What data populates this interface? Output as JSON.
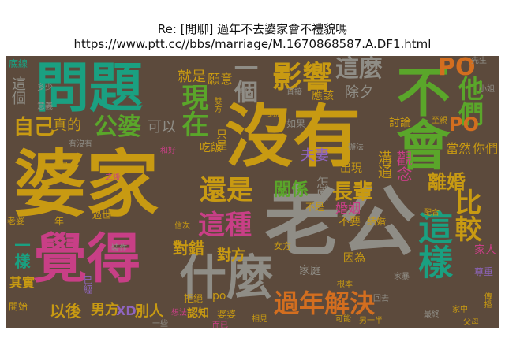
{
  "header": {
    "title": "Re: [閒聊] 過年不去婆家會不禮貌嗎",
    "url": "https://www.ptt.cc//bbs/marriage/M.1670868587.A.DF1.html"
  },
  "colors": {
    "background": "#5c4a3c",
    "teal": "#1aa081",
    "gold": "#c89a12",
    "pink": "#c83f86",
    "green": "#5aa62a",
    "orange": "#d36e1f",
    "gray": "#8f8d86",
    "purple": "#8f65c0"
  },
  "words": {
    "w_wenti": "問題",
    "w_meiyou": "沒有",
    "w_buhui": "不會",
    "w_pojia": "婆家",
    "w_laogong": "老公",
    "w_juede": "覺得",
    "w_shenme": "什麼",
    "w_zheyang": "這樣",
    "w_yingxiang": "影響",
    "w_zheme": "這麼",
    "w_yige": "一個",
    "w_zaixian": "現在",
    "w_gongpo": "公婆",
    "w_ziji": "自己",
    "w_haishi": "還是",
    "w_zhezhong": "這種",
    "w_guanxi": "關係",
    "w_zhangbei": "長輩",
    "w_bijiao": "比較",
    "w_lihun": "離婚",
    "w_guonian": "過年解決",
    "w_tamen": "他們",
    "w_po": "PO",
    "w_jiushi": "就是",
    "w_yuanyi": "願意",
    "w_zhende": "真的",
    "w_keyi": "可以",
    "w_chuxi": "除夕",
    "w_yinggai": "應該",
    "w_taolun": "討論",
    "w_gainian": "觀念",
    "w_goutong": "溝通",
    "w_fuqi": "夫妻",
    "w_chuxian": "出現",
    "w_hunyin": "婚姻",
    "w_zenme": "怎麼",
    "w_buyao": "不要",
    "w_jiehun": "結婚",
    "w_duicuo": "對錯",
    "w_duifang": "對方",
    "w_yiyang": "一樣",
    "w_qishi": "其實",
    "w_yihou": "以後",
    "w_nanfang": "男方",
    "w_xd": "XD",
    "w_bieren": "別人",
    "w_jiating": "家庭",
    "w_yinwei": "因為",
    "w_dangran": "當然",
    "w_nimen": "你們",
    "w_po2": "po",
    "w_dijian": "底線",
    "w_zhege": "這個",
    "w_xiansheng": "先生",
    "w_ruguo": "如果",
    "w_zhijie": "直接",
    "w_chuantong": "傳統",
    "w_shuangfang": "雙方",
    "w_zhishi": "只是",
    "w_chifan": "吃飯",
    "w_laopo": "老婆",
    "w_guoshi": "過世",
    "w_nvfang": "女方",
    "w_kenen": "可能",
    "w_lingyiban": "另一半",
    "w_renzhi": "認知",
    "w_jujue": "拒絕",
    "w_zunzhong": "尊重",
    "w_jiaren": "家人",
    "w_yijing": "已經",
    "w_kaishi": "開始",
    "w_youmeiyou": "有沒有",
    "w_buneng": "不能",
    "w_bushi": "不是",
    "w_peihe": "配合",
    "w_banfa": "辦法",
    "w_zhizhi": "至親",
    "w_daodi": "到底",
    "w_xiangjian": "相見",
    "w_chuanbo": "傳播",
    "w_yinian": "一年",
    "w_qiufu": "婆婆",
    "w_jiaru": "家中",
    "w_xiangfa": "想法",
    "w_xinci": "信次",
    "w_genben": "根本",
    "w_zhihou": "之後",
    "w_zuizhong": "最終",
    "w_huaci": "回去",
    "w_yiyi": "意義",
    "w_gongju": "工具",
    "w_ershi": "而已",
    "w_fumu": "父母",
    "w_hehao": "和好",
    "w_zhuangzhu": "裝作",
    "w_xiaojie": "小姐",
    "w_yixie": "一些",
    "w_jiabo": "家暴",
    "w_duoshi": "多少"
  }
}
